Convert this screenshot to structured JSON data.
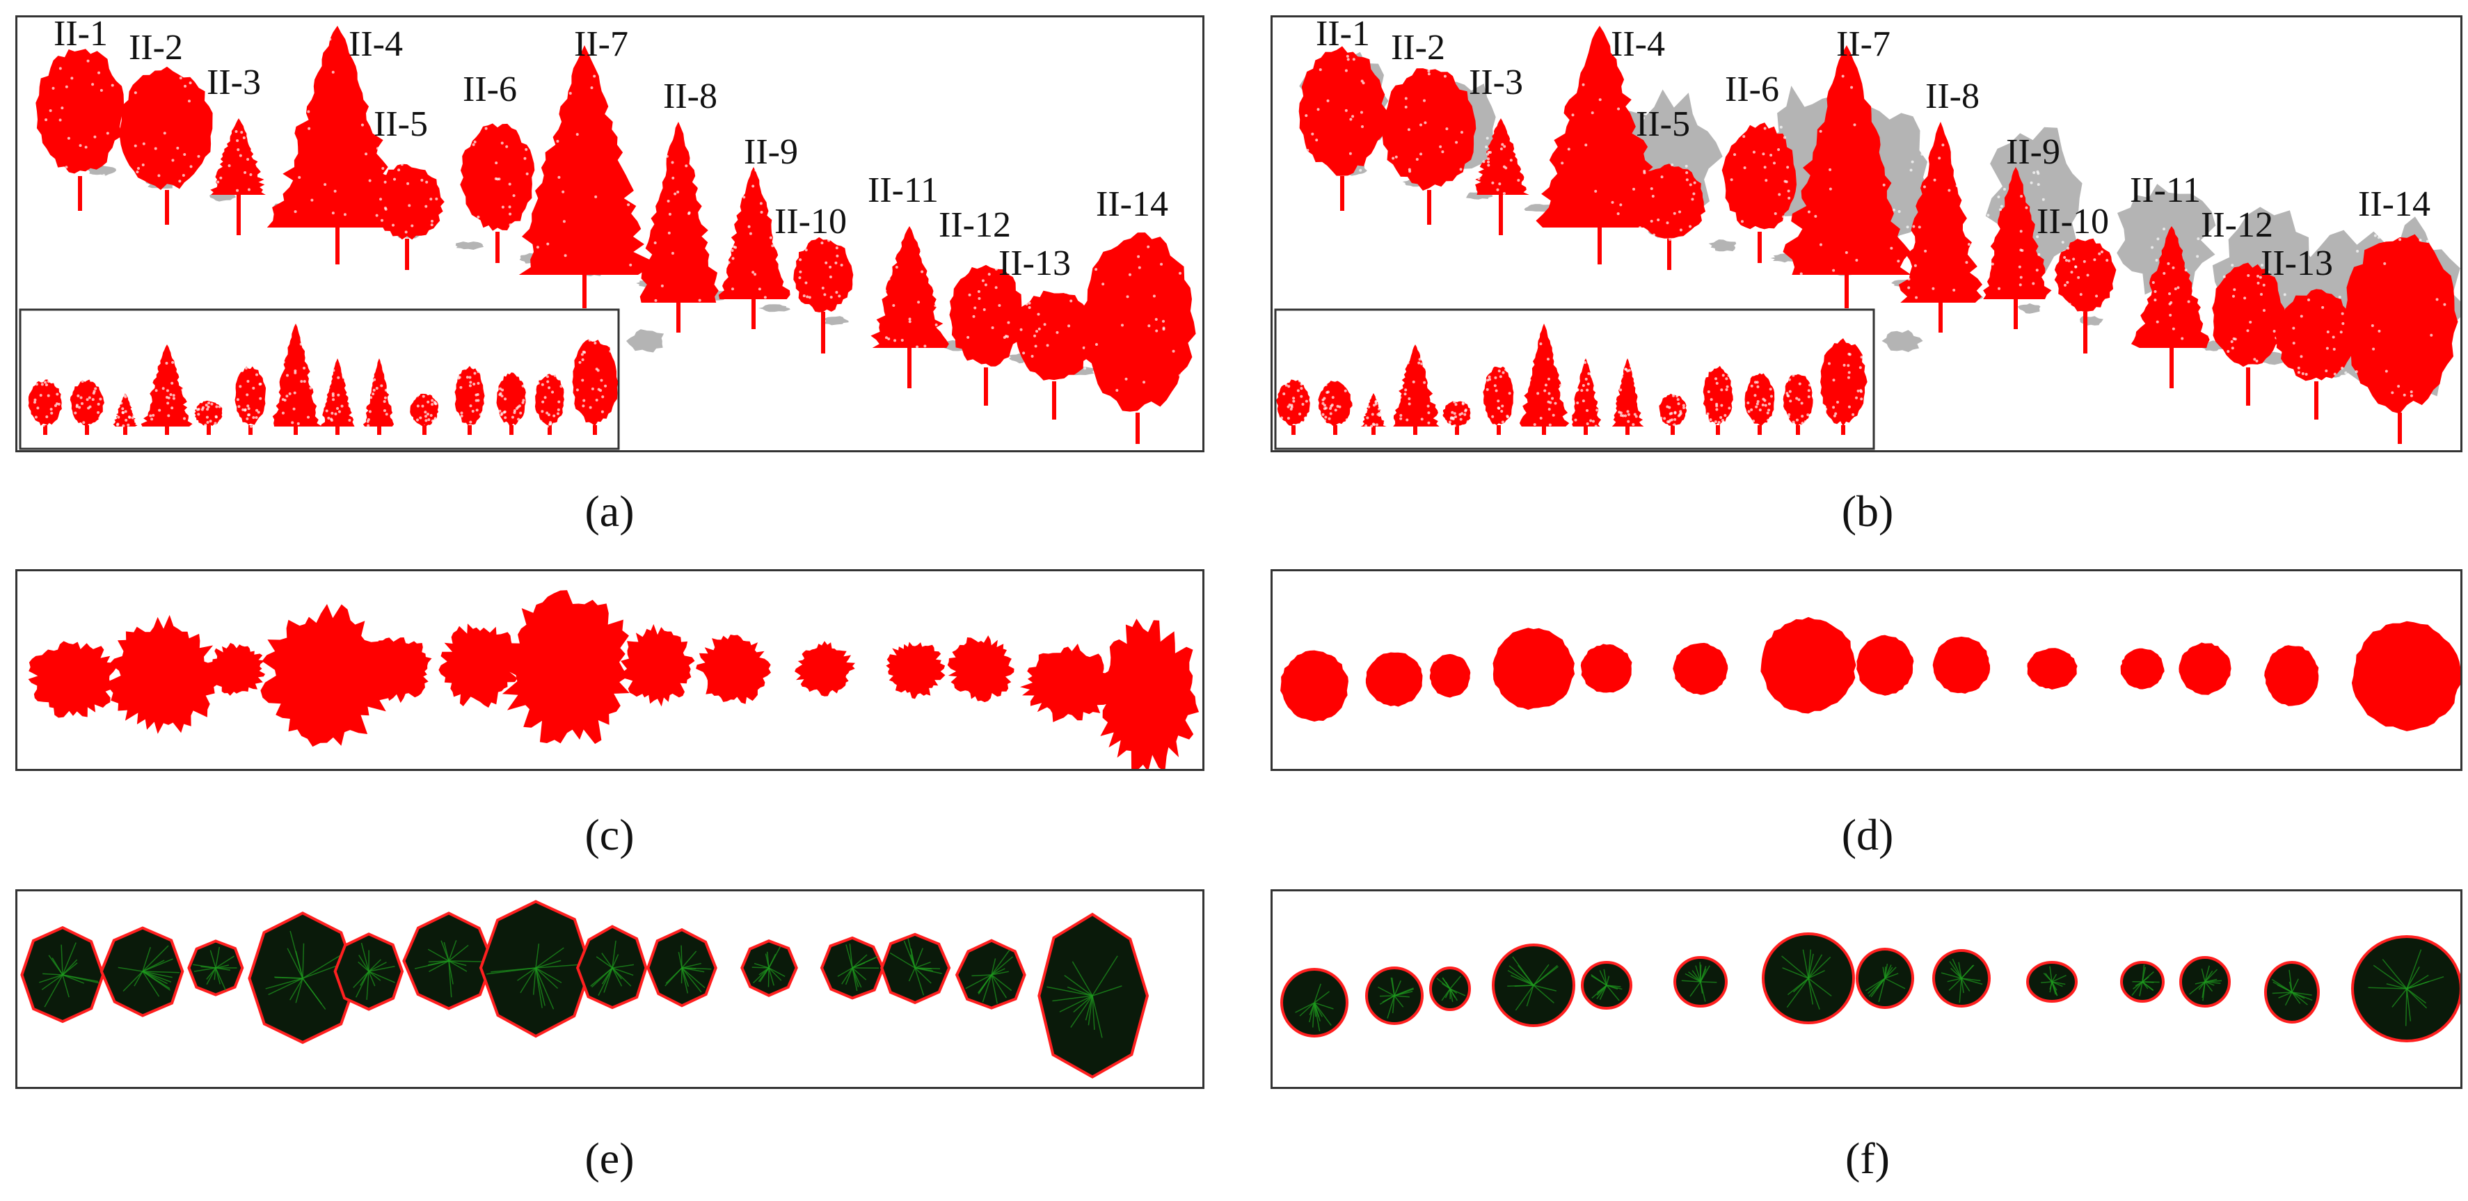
{
  "tree_labels": [
    "II-1",
    "II-2",
    "II-3",
    "II-4",
    "II-5",
    "II-6",
    "II-7",
    "II-8",
    "II-9",
    "II-10",
    "II-11",
    "II-12",
    "II-13",
    "II-14"
  ],
  "captions": {
    "a": "(a)",
    "b": "(b)",
    "c": "(c)",
    "d": "(d)",
    "e": "(e)",
    "f": "(f)"
  },
  "colors": {
    "tree_points": "#ff0000",
    "ground_points": "#b4b4b4",
    "canopy_fill": "#0a1a0a",
    "canopy_branches": "#1e9b1e",
    "hull_outline": "#ff2020",
    "panel_border": "#333333"
  }
}
